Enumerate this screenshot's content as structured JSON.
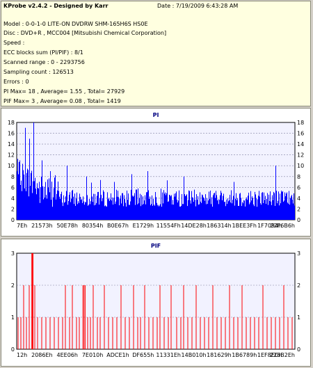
{
  "header": {
    "title": "KProbe v2.4.2 - Designed by Karr",
    "date": "Date : 7/19/2009 6:43:28 AM"
  },
  "info_lines": [
    "Model : 0-0-1-0 LITE-ON DVDRW SHM-165H6S HS0E",
    "Disc : DVD+R , MCC004 [Mitsubishi Chemical Corporation]",
    "Speed :",
    "ECC blocks sum (PI/PIF) : 8/1",
    "Scanned range : 0 - 2293756",
    "Sampling count : 126513",
    "Errors : 0",
    "PI Max= 18 , Average= 1.55 , Total= 27929",
    "PIF Max= 3 , Average= 0.08 , Total= 1419"
  ],
  "colors": {
    "pi": "#0000ff",
    "pif": "#ff0000",
    "plot_bg": "#f2f2ff",
    "grid": "#8080a0"
  },
  "chart_data": [
    {
      "type": "area",
      "title": "PI",
      "ylim": [
        0,
        18
      ],
      "yticks": [
        0,
        2,
        4,
        6,
        8,
        10,
        12,
        14,
        16,
        18
      ],
      "xtick_labels": [
        "7Eh",
        "21573h",
        "50E78h",
        "80354h",
        "B0E67h",
        "E1729h",
        "11554Fh",
        "14DE28h",
        "186314h",
        "1BEE3Fh",
        "1F7094h",
        "22F6B6h"
      ],
      "grid": true,
      "x_range": [
        126,
        2291382
      ],
      "notable_values": [
        {
          "x_frac": 0.01,
          "y": 11
        },
        {
          "x_frac": 0.03,
          "y": 17
        },
        {
          "x_frac": 0.045,
          "y": 15
        },
        {
          "x_frac": 0.06,
          "y": 18
        },
        {
          "x_frac": 0.09,
          "y": 11
        },
        {
          "x_frac": 0.12,
          "y": 9
        },
        {
          "x_frac": 0.18,
          "y": 10
        },
        {
          "x_frac": 0.25,
          "y": 8
        },
        {
          "x_frac": 0.35,
          "y": 7
        },
        {
          "x_frac": 0.47,
          "y": 9
        },
        {
          "x_frac": 0.6,
          "y": 8
        },
        {
          "x_frac": 0.78,
          "y": 7
        },
        {
          "x_frac": 0.93,
          "y": 10
        }
      ],
      "baseline": 3
    },
    {
      "type": "bar",
      "title": "PIF",
      "ylim": [
        0,
        3
      ],
      "yticks": [
        0,
        1,
        2,
        3
      ],
      "xtick_labels": [
        "12h",
        "2086Eh",
        "4EE06h",
        "7E010h",
        "ADCE1h",
        "DF655h",
        "11331Eh",
        "14B010h",
        "181629h",
        "1B6789h",
        "1EF8ECh",
        "226B2Eh"
      ],
      "grid": true,
      "x_range": [
        18,
        2255662
      ],
      "spikes": [
        {
          "x_frac": 0.005,
          "y": 1
        },
        {
          "x_frac": 0.015,
          "y": 1
        },
        {
          "x_frac": 0.025,
          "y": 2
        },
        {
          "x_frac": 0.035,
          "y": 1
        },
        {
          "x_frac": 0.045,
          "y": 2
        },
        {
          "x_frac": 0.055,
          "y": 3
        },
        {
          "x_frac": 0.058,
          "y": 3
        },
        {
          "x_frac": 0.065,
          "y": 2
        },
        {
          "x_frac": 0.075,
          "y": 1
        },
        {
          "x_frac": 0.09,
          "y": 1
        },
        {
          "x_frac": 0.105,
          "y": 1
        },
        {
          "x_frac": 0.12,
          "y": 1
        },
        {
          "x_frac": 0.135,
          "y": 1
        },
        {
          "x_frac": 0.15,
          "y": 1
        },
        {
          "x_frac": 0.165,
          "y": 1
        },
        {
          "x_frac": 0.175,
          "y": 2
        },
        {
          "x_frac": 0.19,
          "y": 1
        },
        {
          "x_frac": 0.2,
          "y": 2
        },
        {
          "x_frac": 0.215,
          "y": 1
        },
        {
          "x_frac": 0.225,
          "y": 1
        },
        {
          "x_frac": 0.238,
          "y": 2
        },
        {
          "x_frac": 0.242,
          "y": 2
        },
        {
          "x_frac": 0.246,
          "y": 2
        },
        {
          "x_frac": 0.255,
          "y": 1
        },
        {
          "x_frac": 0.265,
          "y": 1
        },
        {
          "x_frac": 0.275,
          "y": 2
        },
        {
          "x_frac": 0.29,
          "y": 1
        },
        {
          "x_frac": 0.3,
          "y": 1
        },
        {
          "x_frac": 0.315,
          "y": 2
        },
        {
          "x_frac": 0.33,
          "y": 1
        },
        {
          "x_frac": 0.345,
          "y": 1
        },
        {
          "x_frac": 0.36,
          "y": 1
        },
        {
          "x_frac": 0.375,
          "y": 2
        },
        {
          "x_frac": 0.39,
          "y": 1
        },
        {
          "x_frac": 0.405,
          "y": 1
        },
        {
          "x_frac": 0.42,
          "y": 2
        },
        {
          "x_frac": 0.435,
          "y": 1
        },
        {
          "x_frac": 0.445,
          "y": 1
        },
        {
          "x_frac": 0.46,
          "y": 2
        },
        {
          "x_frac": 0.475,
          "y": 1
        },
        {
          "x_frac": 0.49,
          "y": 1
        },
        {
          "x_frac": 0.505,
          "y": 1
        },
        {
          "x_frac": 0.515,
          "y": 2
        },
        {
          "x_frac": 0.53,
          "y": 1
        },
        {
          "x_frac": 0.545,
          "y": 1
        },
        {
          "x_frac": 0.555,
          "y": 2
        },
        {
          "x_frac": 0.575,
          "y": 1
        },
        {
          "x_frac": 0.59,
          "y": 1
        },
        {
          "x_frac": 0.6,
          "y": 2
        },
        {
          "x_frac": 0.615,
          "y": 1
        },
        {
          "x_frac": 0.63,
          "y": 1
        },
        {
          "x_frac": 0.645,
          "y": 2
        },
        {
          "x_frac": 0.66,
          "y": 1
        },
        {
          "x_frac": 0.675,
          "y": 1
        },
        {
          "x_frac": 0.69,
          "y": 1
        },
        {
          "x_frac": 0.705,
          "y": 2
        },
        {
          "x_frac": 0.72,
          "y": 1
        },
        {
          "x_frac": 0.735,
          "y": 1
        },
        {
          "x_frac": 0.75,
          "y": 1
        },
        {
          "x_frac": 0.765,
          "y": 2
        },
        {
          "x_frac": 0.78,
          "y": 1
        },
        {
          "x_frac": 0.795,
          "y": 1
        },
        {
          "x_frac": 0.81,
          "y": 2
        },
        {
          "x_frac": 0.825,
          "y": 1
        },
        {
          "x_frac": 0.84,
          "y": 1
        },
        {
          "x_frac": 0.855,
          "y": 1
        },
        {
          "x_frac": 0.87,
          "y": 1
        },
        {
          "x_frac": 0.885,
          "y": 2
        },
        {
          "x_frac": 0.9,
          "y": 1
        },
        {
          "x_frac": 0.915,
          "y": 1
        },
        {
          "x_frac": 0.93,
          "y": 1
        },
        {
          "x_frac": 0.945,
          "y": 1
        },
        {
          "x_frac": 0.96,
          "y": 2
        },
        {
          "x_frac": 0.975,
          "y": 1
        },
        {
          "x_frac": 0.99,
          "y": 1
        }
      ]
    }
  ]
}
